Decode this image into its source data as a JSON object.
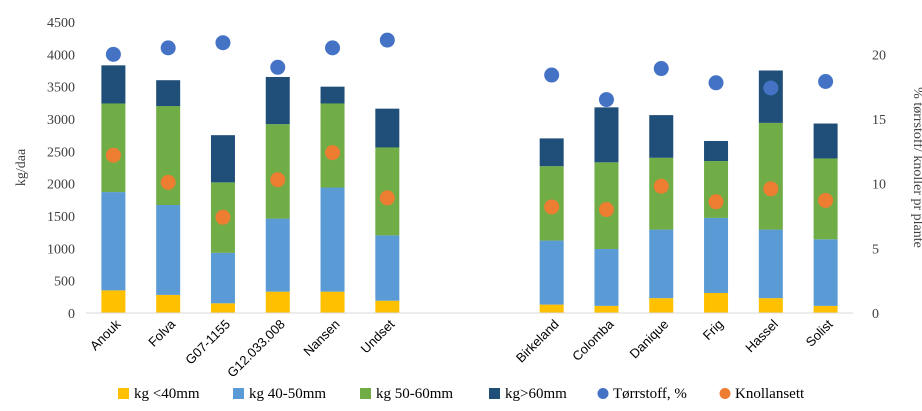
{
  "chart_data": {
    "type": "bar",
    "stacked": true,
    "categories": [
      "Anouk",
      "Folva",
      "G07-1155",
      "G12.033.008",
      "Nansen",
      "Undset",
      "Birkeland",
      "Colomba",
      "Danique",
      "Frig",
      "Hassel",
      "Solist"
    ],
    "category_gap_after": "Undset",
    "ylabel": "kg/daa",
    "y2label": "% tørrstoff/ knoller pr plante",
    "ylim": [
      0,
      4500
    ],
    "yticks": [
      0,
      500,
      1000,
      1500,
      2000,
      2500,
      3000,
      3500,
      4000,
      4500
    ],
    "y2lim": [
      0,
      22.5
    ],
    "y2ticks": [
      0,
      5,
      10,
      15,
      20
    ],
    "legend_position": "bottom",
    "grid": false,
    "series": [
      {
        "name": "kg <40mm",
        "axis": "left",
        "kind": "bar",
        "color": "#FFC000",
        "values": [
          350,
          280,
          150,
          330,
          330,
          190,
          130,
          110,
          230,
          310,
          230,
          110
        ]
      },
      {
        "name": "kg 40-50mm",
        "axis": "left",
        "kind": "bar",
        "color": "#5B9BD5",
        "values": [
          1520,
          1390,
          780,
          1130,
          1610,
          1010,
          990,
          880,
          1060,
          1160,
          1060,
          1030
        ]
      },
      {
        "name": "kg 50-60mm",
        "axis": "left",
        "kind": "bar",
        "color": "#70AD47",
        "values": [
          1370,
          1530,
          1090,
          1460,
          1300,
          1360,
          1150,
          1340,
          1110,
          880,
          1650,
          1250
        ]
      },
      {
        "name": "kg>60mm",
        "axis": "left",
        "kind": "bar",
        "color": "#1F4E79",
        "values": [
          590,
          400,
          730,
          730,
          260,
          600,
          430,
          850,
          660,
          310,
          810,
          540
        ]
      },
      {
        "name": "Tørrstoff, %",
        "axis": "right",
        "kind": "scatter",
        "color": "#4472C4",
        "values": [
          20.0,
          20.5,
          20.9,
          19.0,
          20.5,
          21.1,
          18.4,
          16.5,
          18.9,
          17.8,
          17.4,
          17.9
        ]
      },
      {
        "name": "Knollansett",
        "axis": "right",
        "kind": "scatter",
        "color": "#ED7D31",
        "values": [
          12.2,
          10.1,
          7.4,
          10.3,
          12.4,
          8.9,
          8.2,
          8.0,
          9.8,
          8.6,
          9.6,
          8.7
        ]
      }
    ]
  }
}
